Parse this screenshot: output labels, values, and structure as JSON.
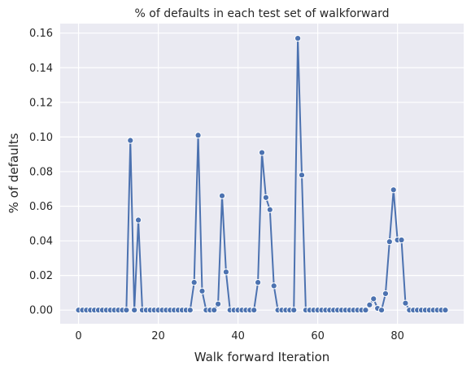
{
  "chart_data": {
    "type": "line",
    "title": "% of defaults in each test set of walkforward",
    "xlabel": "Walk forward Iteration",
    "ylabel": "% of defaults",
    "xlim": [
      -4.6,
      96.6
    ],
    "ylim": [
      -0.0079,
      0.1655
    ],
    "x_ticks": [
      0,
      20,
      40,
      60,
      80
    ],
    "y_ticks": [
      0.0,
      0.02,
      0.04,
      0.06,
      0.08,
      0.1,
      0.12,
      0.14,
      0.16
    ],
    "x_tick_labels": [
      "0",
      "20",
      "40",
      "60",
      "80"
    ],
    "y_tick_labels": [
      "0.00",
      "0.02",
      "0.04",
      "0.06",
      "0.08",
      "0.10",
      "0.12",
      "0.14",
      "0.16"
    ],
    "grid": true,
    "colors": {
      "line": "#4c72b0",
      "background": "#eaeaf2",
      "grid": "#ffffff"
    },
    "series": [
      {
        "x": [
          0,
          1,
          2,
          3,
          4,
          5,
          6,
          7,
          8,
          9,
          10,
          11,
          12,
          13,
          14,
          15,
          16,
          17,
          18,
          19,
          20,
          21,
          22,
          23,
          24,
          25,
          26,
          27,
          28,
          29,
          30,
          31,
          32,
          33,
          34,
          35,
          36,
          37,
          38,
          39,
          40,
          41,
          42,
          43,
          44,
          45,
          46,
          47,
          48,
          49,
          50,
          51,
          52,
          53,
          54,
          55,
          56,
          57,
          58,
          59,
          60,
          61,
          62,
          63,
          64,
          65,
          66,
          67,
          68,
          69,
          70,
          71,
          72,
          73,
          74,
          75,
          76,
          77,
          78,
          79,
          80,
          81,
          82,
          83,
          84,
          85,
          86,
          87,
          88,
          89,
          90,
          91,
          92
        ],
        "values": [
          0,
          0,
          0,
          0,
          0,
          0,
          0,
          0,
          0,
          0,
          0,
          0,
          0,
          0.098,
          0,
          0.052,
          0,
          0,
          0,
          0,
          0,
          0,
          0,
          0,
          0,
          0,
          0,
          0,
          0,
          0.016,
          0.101,
          0.011,
          0,
          0,
          0,
          0.0035,
          0.066,
          0.022,
          0,
          0,
          0,
          0,
          0,
          0,
          0,
          0.016,
          0.091,
          0.065,
          0.058,
          0.014,
          0,
          0,
          0,
          0,
          0,
          0.157,
          0.078,
          0,
          0,
          0,
          0,
          0,
          0,
          0,
          0,
          0,
          0,
          0,
          0,
          0,
          0,
          0,
          0,
          0.003,
          0.0065,
          0.001,
          0,
          0.0095,
          0.0395,
          0.0695,
          0.0405,
          0.0405,
          0.004,
          0,
          0,
          0,
          0,
          0,
          0,
          0,
          0,
          0,
          0
        ]
      }
    ]
  }
}
